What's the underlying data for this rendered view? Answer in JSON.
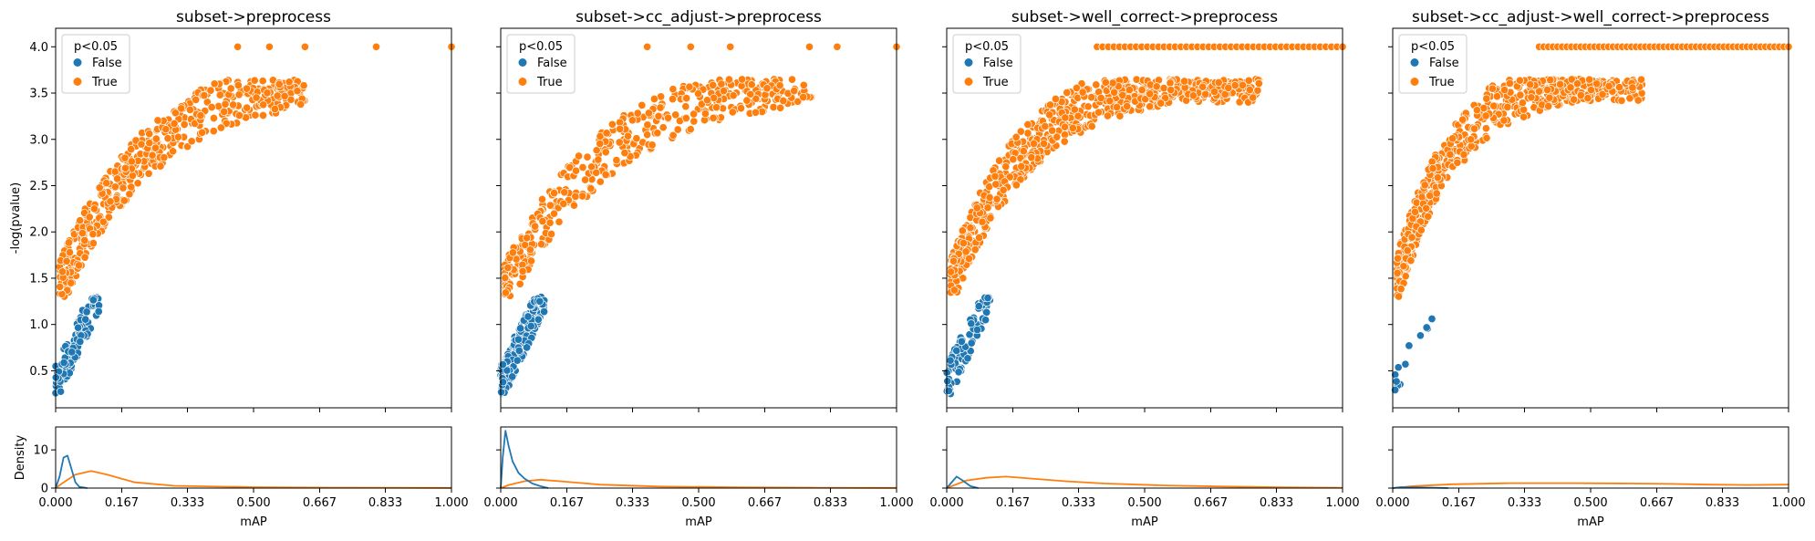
{
  "chart_data": {
    "type": "scatter",
    "shared": {
      "scatter_ylabel": "-log(pvalue)",
      "density_ylabel": "Density",
      "xlabel": "mAP",
      "x_ticks": [
        "0.000",
        "0.167",
        "0.333",
        "0.500",
        "0.667",
        "0.833",
        "1.000"
      ],
      "y_ticks": [
        "0.5",
        "1.0",
        "1.5",
        "2.0",
        "2.5",
        "3.0",
        "3.5",
        "4.0"
      ],
      "density_y_ticks": [
        "0",
        "10"
      ],
      "xlim": [
        0,
        1
      ],
      "ylim": [
        0.1,
        4.2
      ],
      "density_ylim": [
        0,
        16
      ],
      "legend_title": "p<0.05",
      "legend_entries": [
        "False",
        "True"
      ],
      "legend_placement": "top-left",
      "colors": {
        "False": "#1f77b4",
        "True": "#ff7f0e"
      }
    },
    "panels": [
      {
        "title": "subset->preprocess",
        "seed": 11,
        "false_points": 120,
        "true_points": 480,
        "x_max": 0.62,
        "curve_k": 4.2,
        "cap_points": [
          [
            0.46,
            4.0
          ],
          [
            0.54,
            4.0
          ],
          [
            0.63,
            4.0
          ],
          [
            0.81,
            4.0
          ],
          [
            1.0,
            4.0
          ]
        ],
        "density_false": [
          [
            0,
            0
          ],
          [
            0.01,
            3
          ],
          [
            0.02,
            8
          ],
          [
            0.03,
            8.5
          ],
          [
            0.04,
            5
          ],
          [
            0.05,
            1.5
          ],
          [
            0.06,
            0.3
          ],
          [
            0.08,
            0
          ]
        ],
        "density_true": [
          [
            0,
            0
          ],
          [
            0.02,
            1.5
          ],
          [
            0.05,
            3.5
          ],
          [
            0.09,
            4.5
          ],
          [
            0.13,
            3.5
          ],
          [
            0.2,
            1.5
          ],
          [
            0.3,
            0.6
          ],
          [
            0.5,
            0.25
          ],
          [
            0.7,
            0.12
          ],
          [
            1.0,
            0.05
          ]
        ]
      },
      {
        "title": "subset->cc_adjust->preprocess",
        "seed": 23,
        "false_points": 260,
        "true_points": 400,
        "x_max": 0.78,
        "curve_k": 3.6,
        "cap_points": [
          [
            0.37,
            4.0
          ],
          [
            0.48,
            4.0
          ],
          [
            0.58,
            4.0
          ],
          [
            0.78,
            4.0
          ],
          [
            0.85,
            4.0
          ],
          [
            1.0,
            4.0
          ]
        ],
        "density_false": [
          [
            0,
            0
          ],
          [
            0.005,
            8
          ],
          [
            0.012,
            15
          ],
          [
            0.02,
            11
          ],
          [
            0.03,
            7
          ],
          [
            0.045,
            4
          ],
          [
            0.06,
            2.5
          ],
          [
            0.08,
            1.2
          ],
          [
            0.1,
            0.5
          ],
          [
            0.12,
            0
          ]
        ],
        "density_true": [
          [
            0,
            0
          ],
          [
            0.02,
            0.8
          ],
          [
            0.06,
            1.8
          ],
          [
            0.1,
            2.2
          ],
          [
            0.15,
            1.8
          ],
          [
            0.25,
            0.9
          ],
          [
            0.4,
            0.4
          ],
          [
            0.6,
            0.2
          ],
          [
            0.8,
            0.1
          ],
          [
            1.0,
            0.05
          ]
        ]
      },
      {
        "title": "subset->well_correct->preprocess",
        "seed": 37,
        "false_points": 90,
        "true_points": 700,
        "x_max": 0.78,
        "curve_k": 5.0,
        "cap_points": [],
        "cap_row": [
          0.38,
          1.0,
          45
        ],
        "density_false": [
          [
            0,
            0
          ],
          [
            0.01,
            1.2
          ],
          [
            0.025,
            3
          ],
          [
            0.04,
            2
          ],
          [
            0.06,
            0.5
          ],
          [
            0.08,
            0
          ]
        ],
        "density_true": [
          [
            0,
            0
          ],
          [
            0.05,
            2
          ],
          [
            0.1,
            2.7
          ],
          [
            0.15,
            3
          ],
          [
            0.2,
            2.6
          ],
          [
            0.3,
            1.8
          ],
          [
            0.4,
            1.2
          ],
          [
            0.55,
            0.7
          ],
          [
            0.7,
            0.4
          ],
          [
            0.85,
            0.2
          ],
          [
            1.0,
            0.1
          ]
        ]
      },
      {
        "title": "subset->cc_adjust->well_correct->preprocess",
        "seed": 53,
        "false_points": 12,
        "true_points": 560,
        "x_max": 0.62,
        "curve_k": 6.5,
        "cap_points": [],
        "cap_row": [
          0.37,
          1.0,
          55
        ],
        "density_false": [
          [
            0,
            0
          ],
          [
            0.02,
            0.25
          ],
          [
            0.08,
            0.15
          ],
          [
            0.14,
            0
          ]
        ],
        "density_true": [
          [
            0,
            0
          ],
          [
            0.05,
            0.5
          ],
          [
            0.15,
            1
          ],
          [
            0.3,
            1.3
          ],
          [
            0.45,
            1.3
          ],
          [
            0.6,
            1.2
          ],
          [
            0.7,
            1.1
          ],
          [
            0.8,
            0.9
          ],
          [
            0.9,
            0.8
          ],
          [
            1.0,
            0.9
          ]
        ]
      }
    ]
  }
}
